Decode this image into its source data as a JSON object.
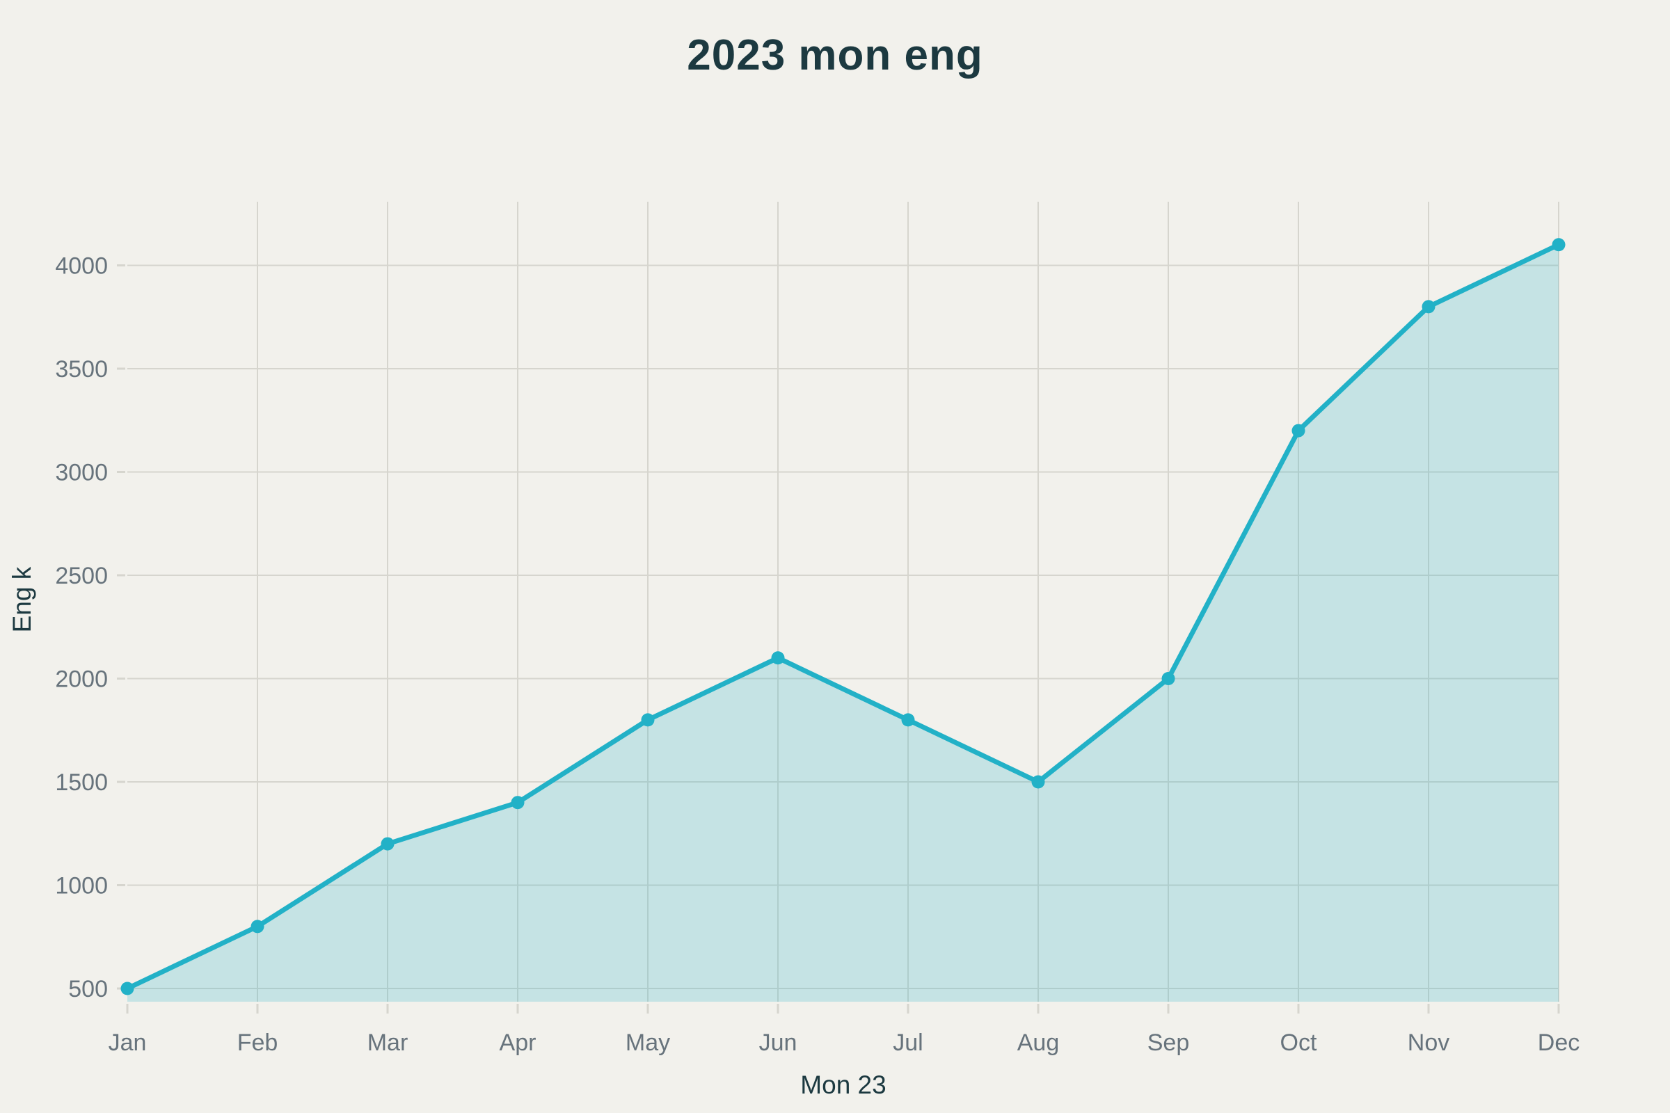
{
  "chart_data": {
    "type": "area",
    "title": "2023 mon eng",
    "xlabel": "Mon 23",
    "ylabel": "Eng k",
    "categories": [
      "Jan",
      "Feb",
      "Mar",
      "Apr",
      "May",
      "Jun",
      "Jul",
      "Aug",
      "Sep",
      "Oct",
      "Nov",
      "Dec"
    ],
    "values": [
      500,
      800,
      1200,
      1400,
      1800,
      2100,
      1800,
      1500,
      2000,
      3200,
      3800,
      4100
    ],
    "yticks": [
      500,
      1000,
      1500,
      2000,
      2500,
      3000,
      3500,
      4000
    ],
    "ylim": [
      436,
      4308
    ],
    "grid": true,
    "legend": false,
    "colors": {
      "background": "#f2f1ec",
      "line": "#22b1c7",
      "marker": "#22b1c7",
      "fill": "rgba(38, 178, 201, 0.22)",
      "gridline": "#d6d5ce",
      "tick_label": "#67737c",
      "dark_text": "#1c3940"
    }
  }
}
